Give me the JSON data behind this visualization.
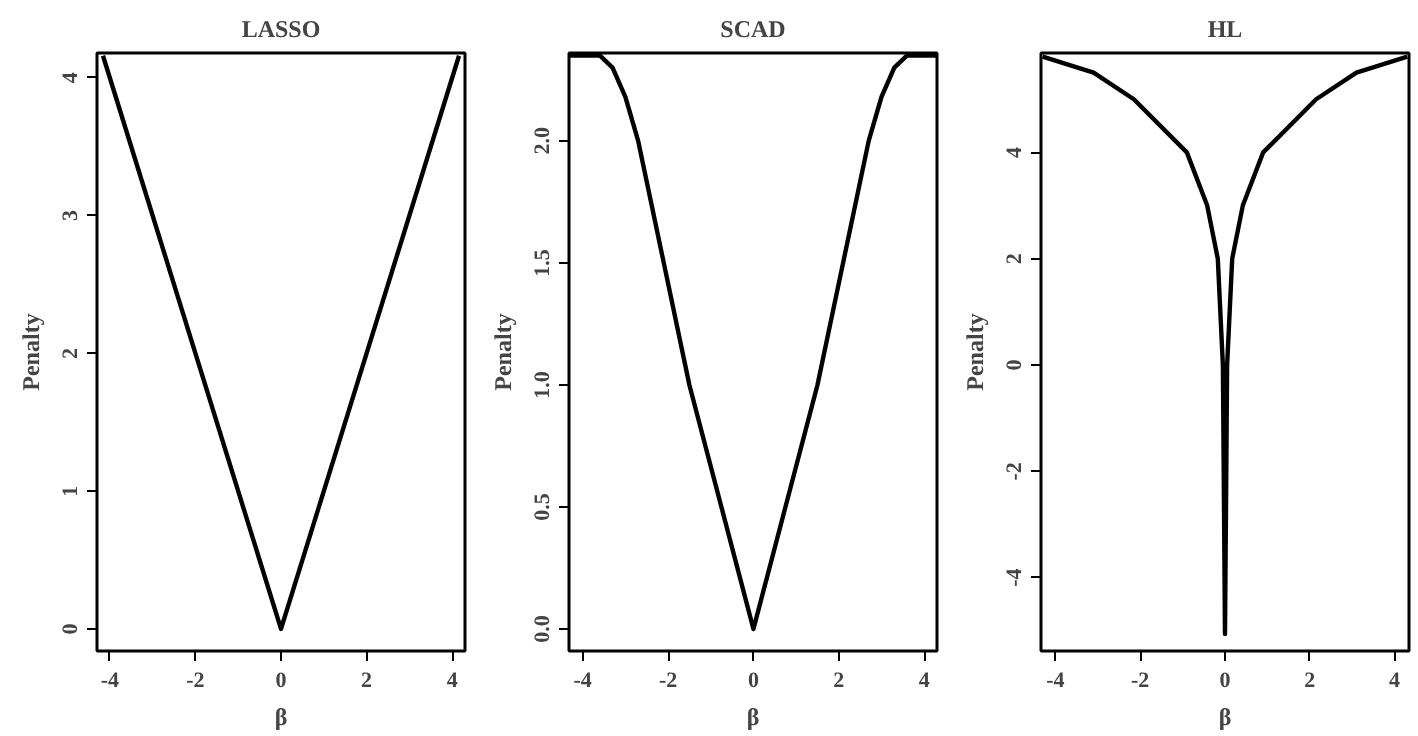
{
  "chart_data": [
    {
      "type": "line",
      "title": "LASSO",
      "xlabel": "β",
      "ylabel": "Penalty",
      "x": [
        -4.16,
        0,
        4.16
      ],
      "values": [
        4.16,
        0,
        4.16
      ],
      "color": "#000000",
      "xlim": [
        -4.3,
        4.3
      ],
      "ylim": [
        -0.16,
        4.18
      ],
      "xticks": [
        -4,
        -2,
        0,
        2,
        4
      ],
      "yticks": [
        0,
        1,
        2,
        3,
        4
      ]
    },
    {
      "type": "line",
      "title": "SCAD",
      "xlabel": "β",
      "ylabel": "Penalty",
      "x": [
        -4.3,
        -3.6,
        -3.3,
        -3.0,
        -2.7,
        -2.1,
        -1.5,
        -0.75,
        0,
        0.75,
        1.5,
        2.1,
        2.7,
        3.0,
        3.3,
        3.6,
        4.3
      ],
      "values": [
        2.35,
        2.35,
        2.3,
        2.18,
        2.0,
        1.5,
        1.0,
        0.5,
        0,
        0.5,
        1.0,
        1.5,
        2.0,
        2.18,
        2.3,
        2.35,
        2.35
      ],
      "color": "#000000",
      "xlim": [
        -4.32,
        4.3
      ],
      "ylim": [
        -0.09,
        2.36
      ],
      "xticks": [
        -4,
        -2,
        0,
        2,
        4
      ],
      "yticks": [
        {
          "value": 0,
          "label": "0.0"
        },
        {
          "value": 0.5,
          "label": "0.5"
        },
        {
          "value": 1,
          "label": "1.0"
        },
        1.5,
        {
          "value": 2,
          "label": "2.0"
        }
      ]
    },
    {
      "type": "line",
      "title": "HL",
      "xlabel": "β",
      "ylabel": "Penalty",
      "x": [
        -4.3,
        -3.1,
        -2.15,
        -0.9,
        -0.42,
        -0.17,
        -0.05,
        0,
        0.05,
        0.17,
        0.42,
        0.9,
        2.15,
        3.1,
        4.3
      ],
      "values": [
        5.8,
        5.5,
        5.0,
        4.0,
        3.0,
        2.0,
        0,
        -5.06,
        0,
        2.0,
        3.0,
        4.0,
        5.0,
        5.5,
        5.8
      ],
      "color": "#000000",
      "xlim": [
        -4.34,
        4.34
      ],
      "ylim": [
        -5.38,
        5.87
      ],
      "xticks": [
        -4,
        -2,
        0,
        2,
        4
      ],
      "yticks": [
        -4,
        -2,
        0,
        2,
        4
      ]
    }
  ]
}
